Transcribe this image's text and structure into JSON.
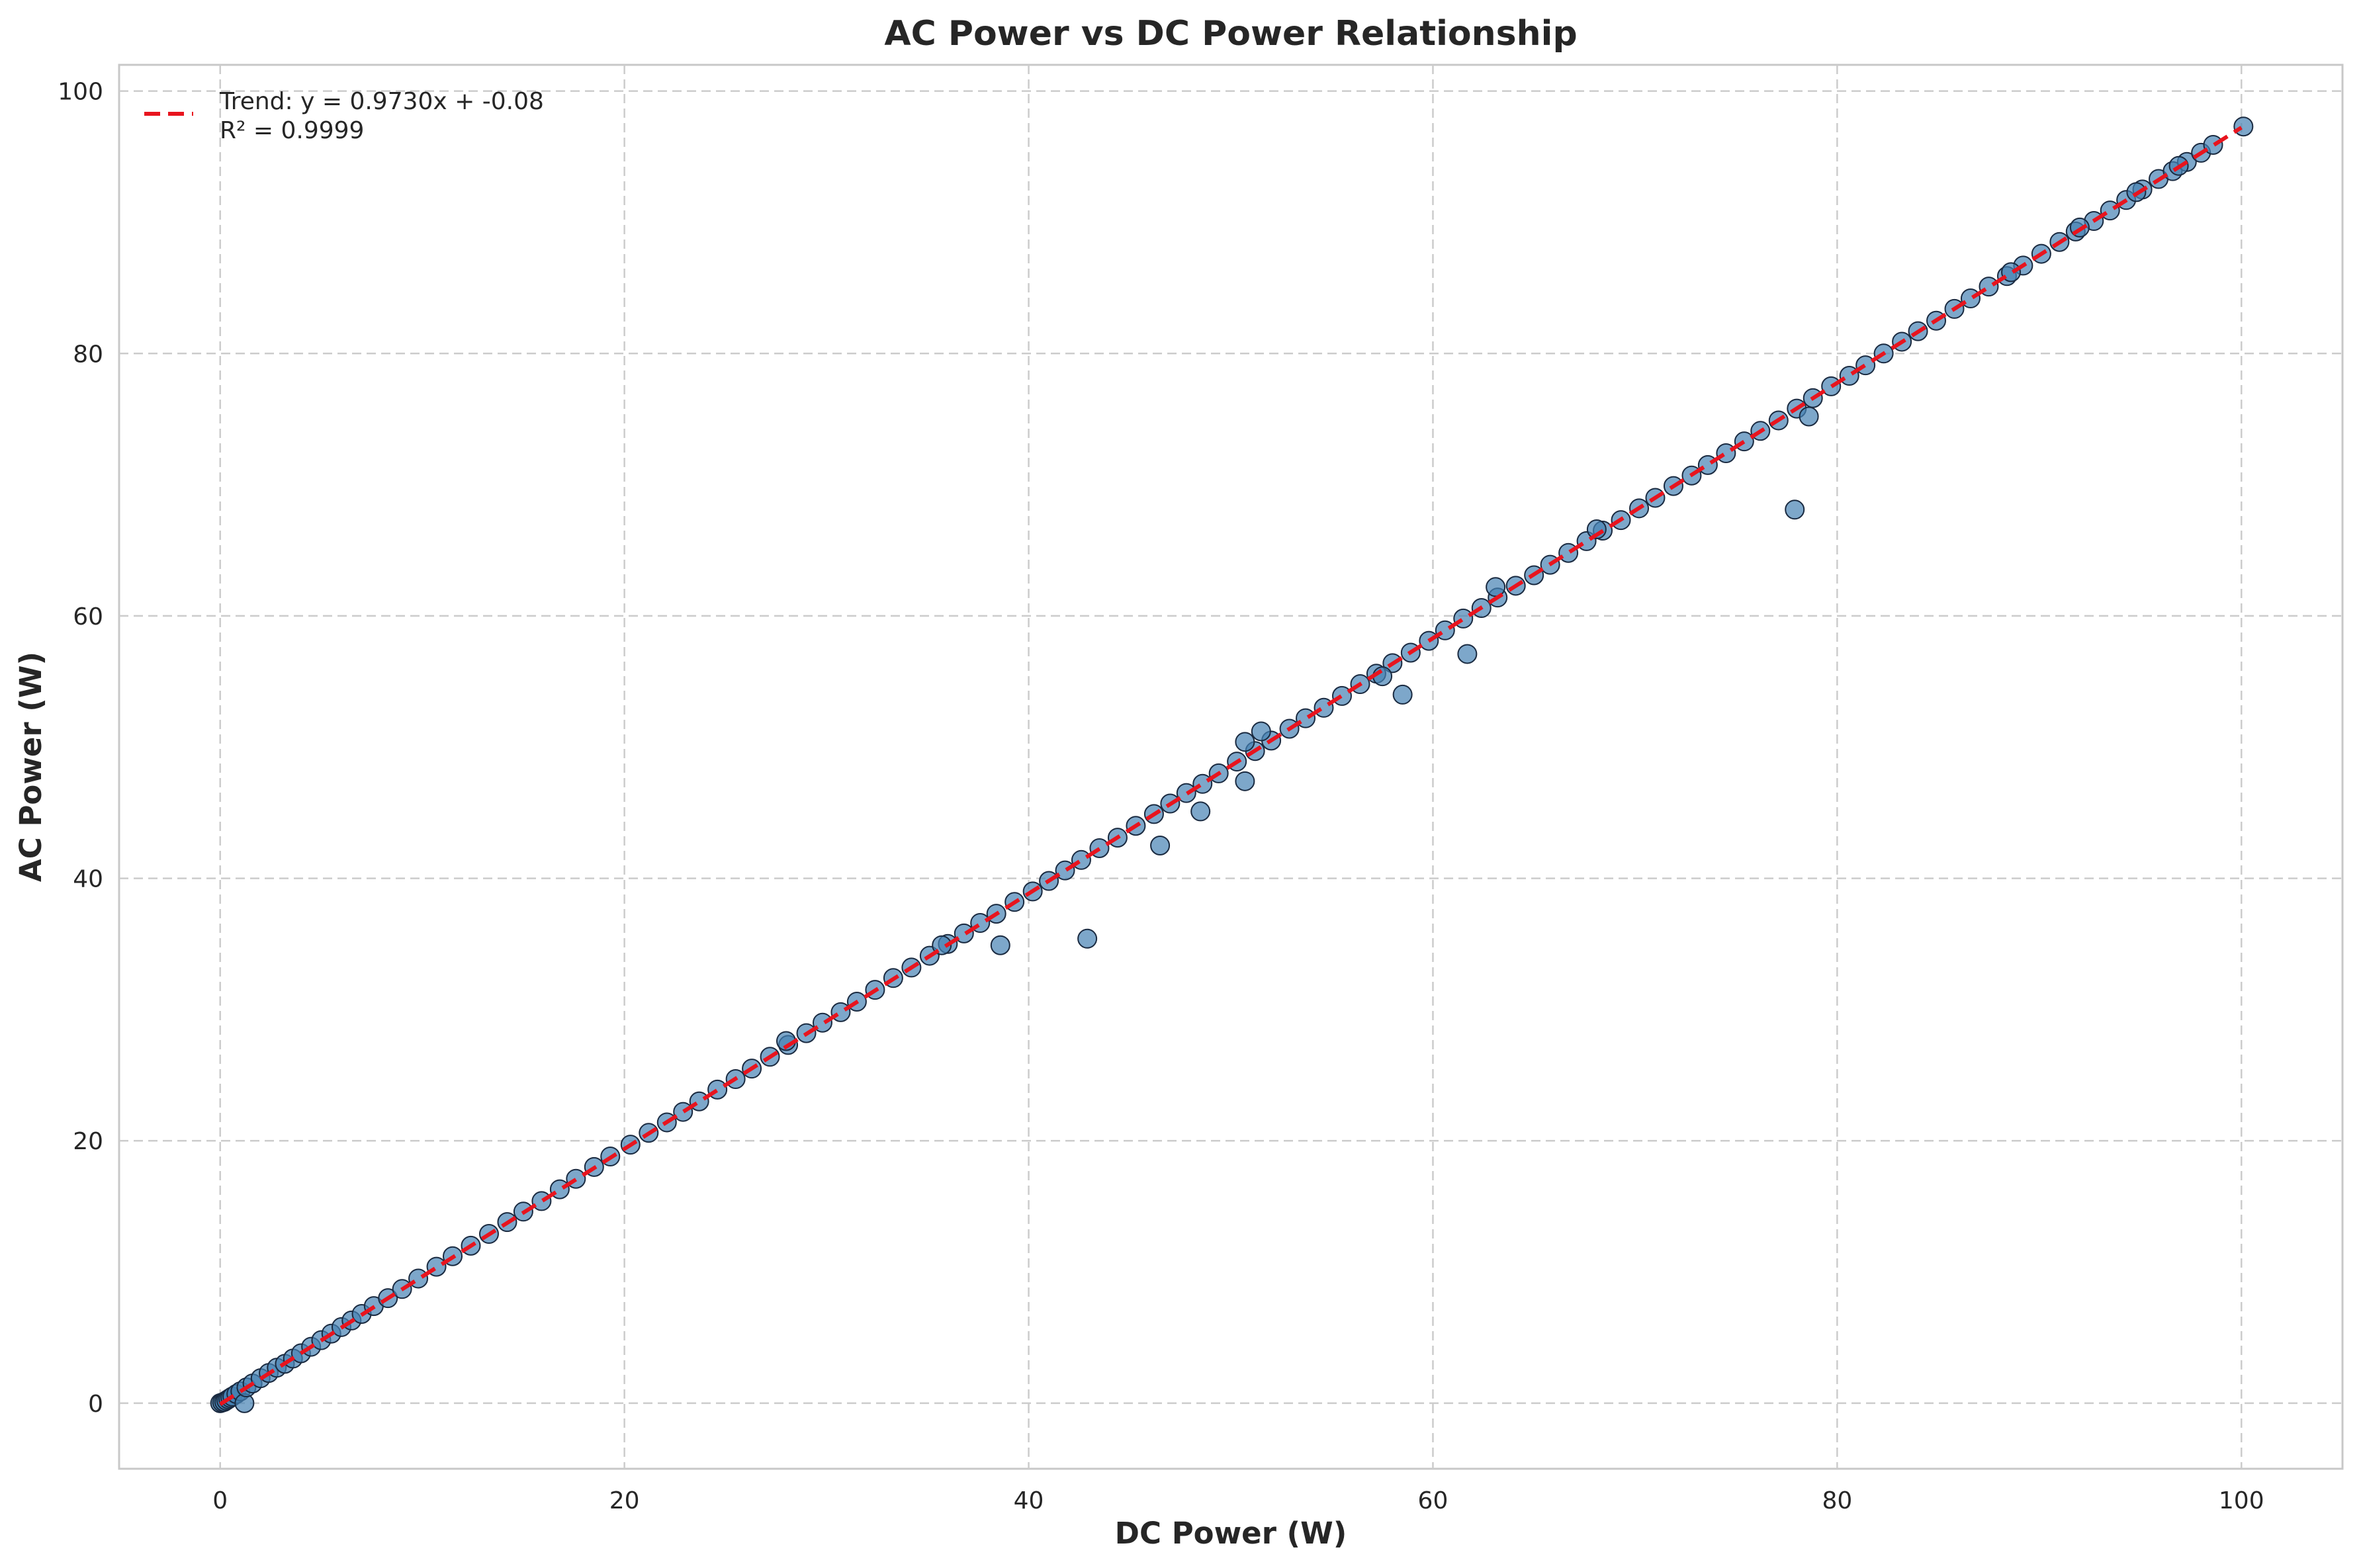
{
  "chart_data": {
    "type": "scatter",
    "title": "AC Power vs DC Power Relationship",
    "xlabel": "DC Power (W)",
    "ylabel": "AC Power (W)",
    "xlim": [
      -5,
      105
    ],
    "ylim": [
      -5,
      102
    ],
    "xticks": [
      0,
      20,
      40,
      60,
      80,
      100
    ],
    "yticks": [
      0,
      20,
      40,
      60,
      80,
      100
    ],
    "xtick_labels": [
      "0",
      "20",
      "40",
      "60",
      "80",
      "100"
    ],
    "ytick_labels": [
      "0",
      "20",
      "40",
      "60",
      "80",
      "100"
    ],
    "grid": true,
    "legend_position": "top-left",
    "legend": {
      "line1": "Trend: y = 0.9730x + -0.08",
      "line2": "R² = 0.9999"
    },
    "trend": {
      "slope": 0.973,
      "intercept": -0.08,
      "r2": 0.9999,
      "x_range": [
        0,
        100
      ]
    },
    "colors": {
      "points": "#4682b4",
      "point_edge": "#1a2a40",
      "trend": "#e8141e"
    },
    "series": [
      {
        "points": [
          [
            0,
            0
          ],
          [
            0.1,
            0.05
          ],
          [
            0.2,
            0.1
          ],
          [
            0.3,
            0.2
          ],
          [
            0.4,
            0.3
          ],
          [
            0.5,
            0.4
          ],
          [
            0.6,
            0.5
          ],
          [
            0.8,
            0.7
          ],
          [
            1.0,
            0.9
          ],
          [
            1.2,
            0.0
          ],
          [
            1.3,
            1.2
          ],
          [
            1.6,
            1.5
          ],
          [
            2.0,
            1.9
          ],
          [
            2.4,
            2.3
          ],
          [
            2.8,
            2.7
          ],
          [
            3.2,
            3.0
          ],
          [
            3.6,
            3.4
          ],
          [
            4.0,
            3.8
          ],
          [
            4.5,
            4.3
          ],
          [
            5.0,
            4.8
          ],
          [
            5.5,
            5.3
          ],
          [
            6.0,
            5.8
          ],
          [
            6.5,
            6.3
          ],
          [
            7.0,
            6.8
          ],
          [
            7.6,
            7.4
          ],
          [
            8.3,
            8.0
          ],
          [
            9.0,
            8.7
          ],
          [
            9.8,
            9.5
          ],
          [
            10.7,
            10.4
          ],
          [
            11.5,
            11.2
          ],
          [
            12.4,
            12.0
          ],
          [
            13.3,
            12.9
          ],
          [
            14.2,
            13.8
          ],
          [
            15.0,
            14.6
          ],
          [
            15.9,
            15.4
          ],
          [
            16.8,
            16.3
          ],
          [
            17.6,
            17.1
          ],
          [
            18.5,
            18.0
          ],
          [
            19.3,
            18.8
          ],
          [
            20.3,
            19.7
          ],
          [
            21.2,
            20.6
          ],
          [
            22.1,
            21.4
          ],
          [
            22.9,
            22.2
          ],
          [
            23.7,
            23.0
          ],
          [
            24.6,
            23.9
          ],
          [
            25.5,
            24.7
          ],
          [
            26.3,
            25.5
          ],
          [
            27.2,
            26.4
          ],
          [
            28.1,
            27.3
          ],
          [
            29.0,
            28.2
          ],
          [
            29.8,
            29.0
          ],
          [
            30.7,
            29.8
          ],
          [
            31.5,
            30.6
          ],
          [
            32.4,
            31.5
          ],
          [
            33.3,
            32.4
          ],
          [
            34.2,
            33.2
          ],
          [
            35.1,
            34.1
          ],
          [
            36.0,
            35.0
          ],
          [
            36.8,
            35.8
          ],
          [
            37.6,
            36.6
          ],
          [
            38.4,
            37.3
          ],
          [
            39.3,
            38.2
          ],
          [
            40.2,
            39.0
          ],
          [
            41.0,
            39.8
          ],
          [
            41.8,
            40.6
          ],
          [
            42.6,
            41.4
          ],
          [
            43.5,
            42.3
          ],
          [
            44.4,
            43.1
          ],
          [
            45.3,
            44.0
          ],
          [
            46.2,
            44.9
          ],
          [
            47.0,
            45.7
          ],
          [
            47.8,
            46.5
          ],
          [
            48.6,
            47.2
          ],
          [
            49.4,
            48.0
          ],
          [
            50.3,
            48.9
          ],
          [
            51.2,
            49.7
          ],
          [
            52.0,
            50.5
          ],
          [
            52.9,
            51.4
          ],
          [
            53.7,
            52.2
          ],
          [
            54.6,
            53.0
          ],
          [
            55.5,
            53.9
          ],
          [
            56.4,
            54.8
          ],
          [
            57.2,
            55.6
          ],
          [
            58.0,
            56.4
          ],
          [
            58.9,
            57.2
          ],
          [
            59.8,
            58.1
          ],
          [
            60.6,
            58.9
          ],
          [
            61.5,
            59.8
          ],
          [
            62.4,
            60.6
          ],
          [
            63.2,
            61.4
          ],
          [
            64.1,
            62.3
          ],
          [
            65.0,
            63.1
          ],
          [
            65.8,
            63.9
          ],
          [
            66.7,
            64.8
          ],
          [
            67.6,
            65.7
          ],
          [
            68.4,
            66.5
          ],
          [
            69.3,
            67.3
          ],
          [
            70.2,
            68.2
          ],
          [
            71.0,
            69.0
          ],
          [
            71.9,
            69.9
          ],
          [
            72.8,
            70.7
          ],
          [
            73.6,
            71.5
          ],
          [
            74.5,
            72.4
          ],
          [
            75.4,
            73.3
          ],
          [
            76.2,
            74.1
          ],
          [
            77.1,
            74.9
          ],
          [
            78.0,
            75.8
          ],
          [
            78.8,
            76.6
          ],
          [
            79.7,
            77.5
          ],
          [
            80.6,
            78.3
          ],
          [
            81.4,
            79.1
          ],
          [
            82.3,
            80.0
          ],
          [
            83.2,
            80.9
          ],
          [
            84.0,
            81.7
          ],
          [
            84.9,
            82.5
          ],
          [
            85.8,
            83.4
          ],
          [
            86.6,
            84.2
          ],
          [
            87.5,
            85.1
          ],
          [
            88.4,
            85.9
          ],
          [
            89.2,
            86.7
          ],
          [
            90.1,
            87.6
          ],
          [
            91.0,
            88.5
          ],
          [
            91.8,
            89.3
          ],
          [
            92.7,
            90.1
          ],
          [
            93.5,
            90.9
          ],
          [
            94.3,
            91.7
          ],
          [
            95.1,
            92.5
          ],
          [
            95.9,
            93.3
          ],
          [
            96.6,
            93.9
          ],
          [
            97.3,
            94.6
          ],
          [
            98.0,
            95.3
          ],
          [
            98.6,
            95.9
          ],
          [
            100.1,
            97.3
          ],
          [
            38.6,
            34.9
          ],
          [
            42.9,
            35.4
          ],
          [
            46.5,
            42.5
          ],
          [
            48.5,
            45.1
          ],
          [
            50.7,
            47.4
          ],
          [
            50.7,
            50.4
          ],
          [
            51.5,
            51.2
          ],
          [
            58.5,
            54.0
          ],
          [
            61.7,
            57.1
          ],
          [
            63.1,
            62.2
          ],
          [
            68.1,
            66.6
          ],
          [
            77.9,
            68.1
          ],
          [
            78.6,
            75.2
          ],
          [
            57.5,
            55.4
          ],
          [
            35.7,
            34.9
          ],
          [
            28.0,
            27.6
          ],
          [
            88.6,
            86.2
          ],
          [
            92.0,
            89.6
          ],
          [
            94.8,
            92.3
          ],
          [
            96.9,
            94.3
          ]
        ]
      }
    ]
  }
}
